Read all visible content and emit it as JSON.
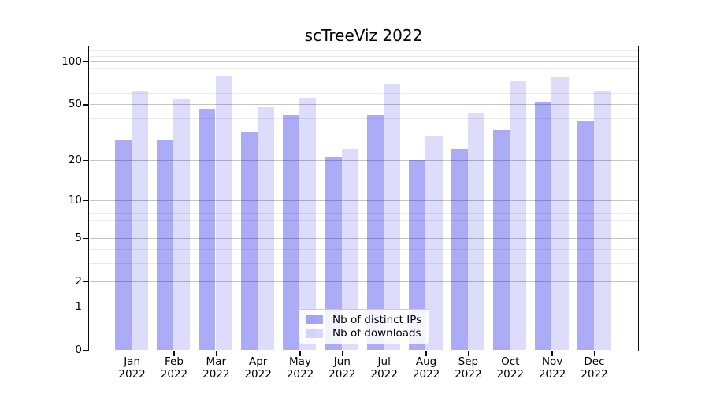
{
  "chart_data": {
    "type": "bar",
    "title": "scTreeViz 2022",
    "categories": [
      "Jan",
      "Feb",
      "Mar",
      "Apr",
      "May",
      "Jun",
      "Jul",
      "Aug",
      "Sep",
      "Oct",
      "Nov",
      "Dec"
    ],
    "category_year": "2022",
    "series": [
      {
        "name": "Nb of distinct IPs",
        "color": "#0d0de6",
        "alpha": 0.35,
        "legend_swatch": "#aaaaf6",
        "values": [
          28,
          28,
          47,
          32,
          42,
          21,
          42,
          20,
          24,
          33,
          52,
          38
        ]
      },
      {
        "name": "Nb of downloads",
        "color": "#0d0de6",
        "alpha": 0.14,
        "legend_swatch": "#ddddfc",
        "values": [
          62,
          55,
          79,
          48,
          56,
          24,
          71,
          30,
          44,
          73,
          78,
          62
        ]
      }
    ],
    "yscale": "log1p",
    "ylim": [
      0,
      128
    ],
    "yticks": [
      0,
      1,
      2,
      5,
      10,
      20,
      50,
      100
    ],
    "yticks_minor": [
      3,
      4,
      6,
      7,
      8,
      9,
      30,
      40,
      60,
      70,
      80,
      90,
      110,
      120
    ],
    "grid": "both",
    "legend_position": "lower center"
  }
}
